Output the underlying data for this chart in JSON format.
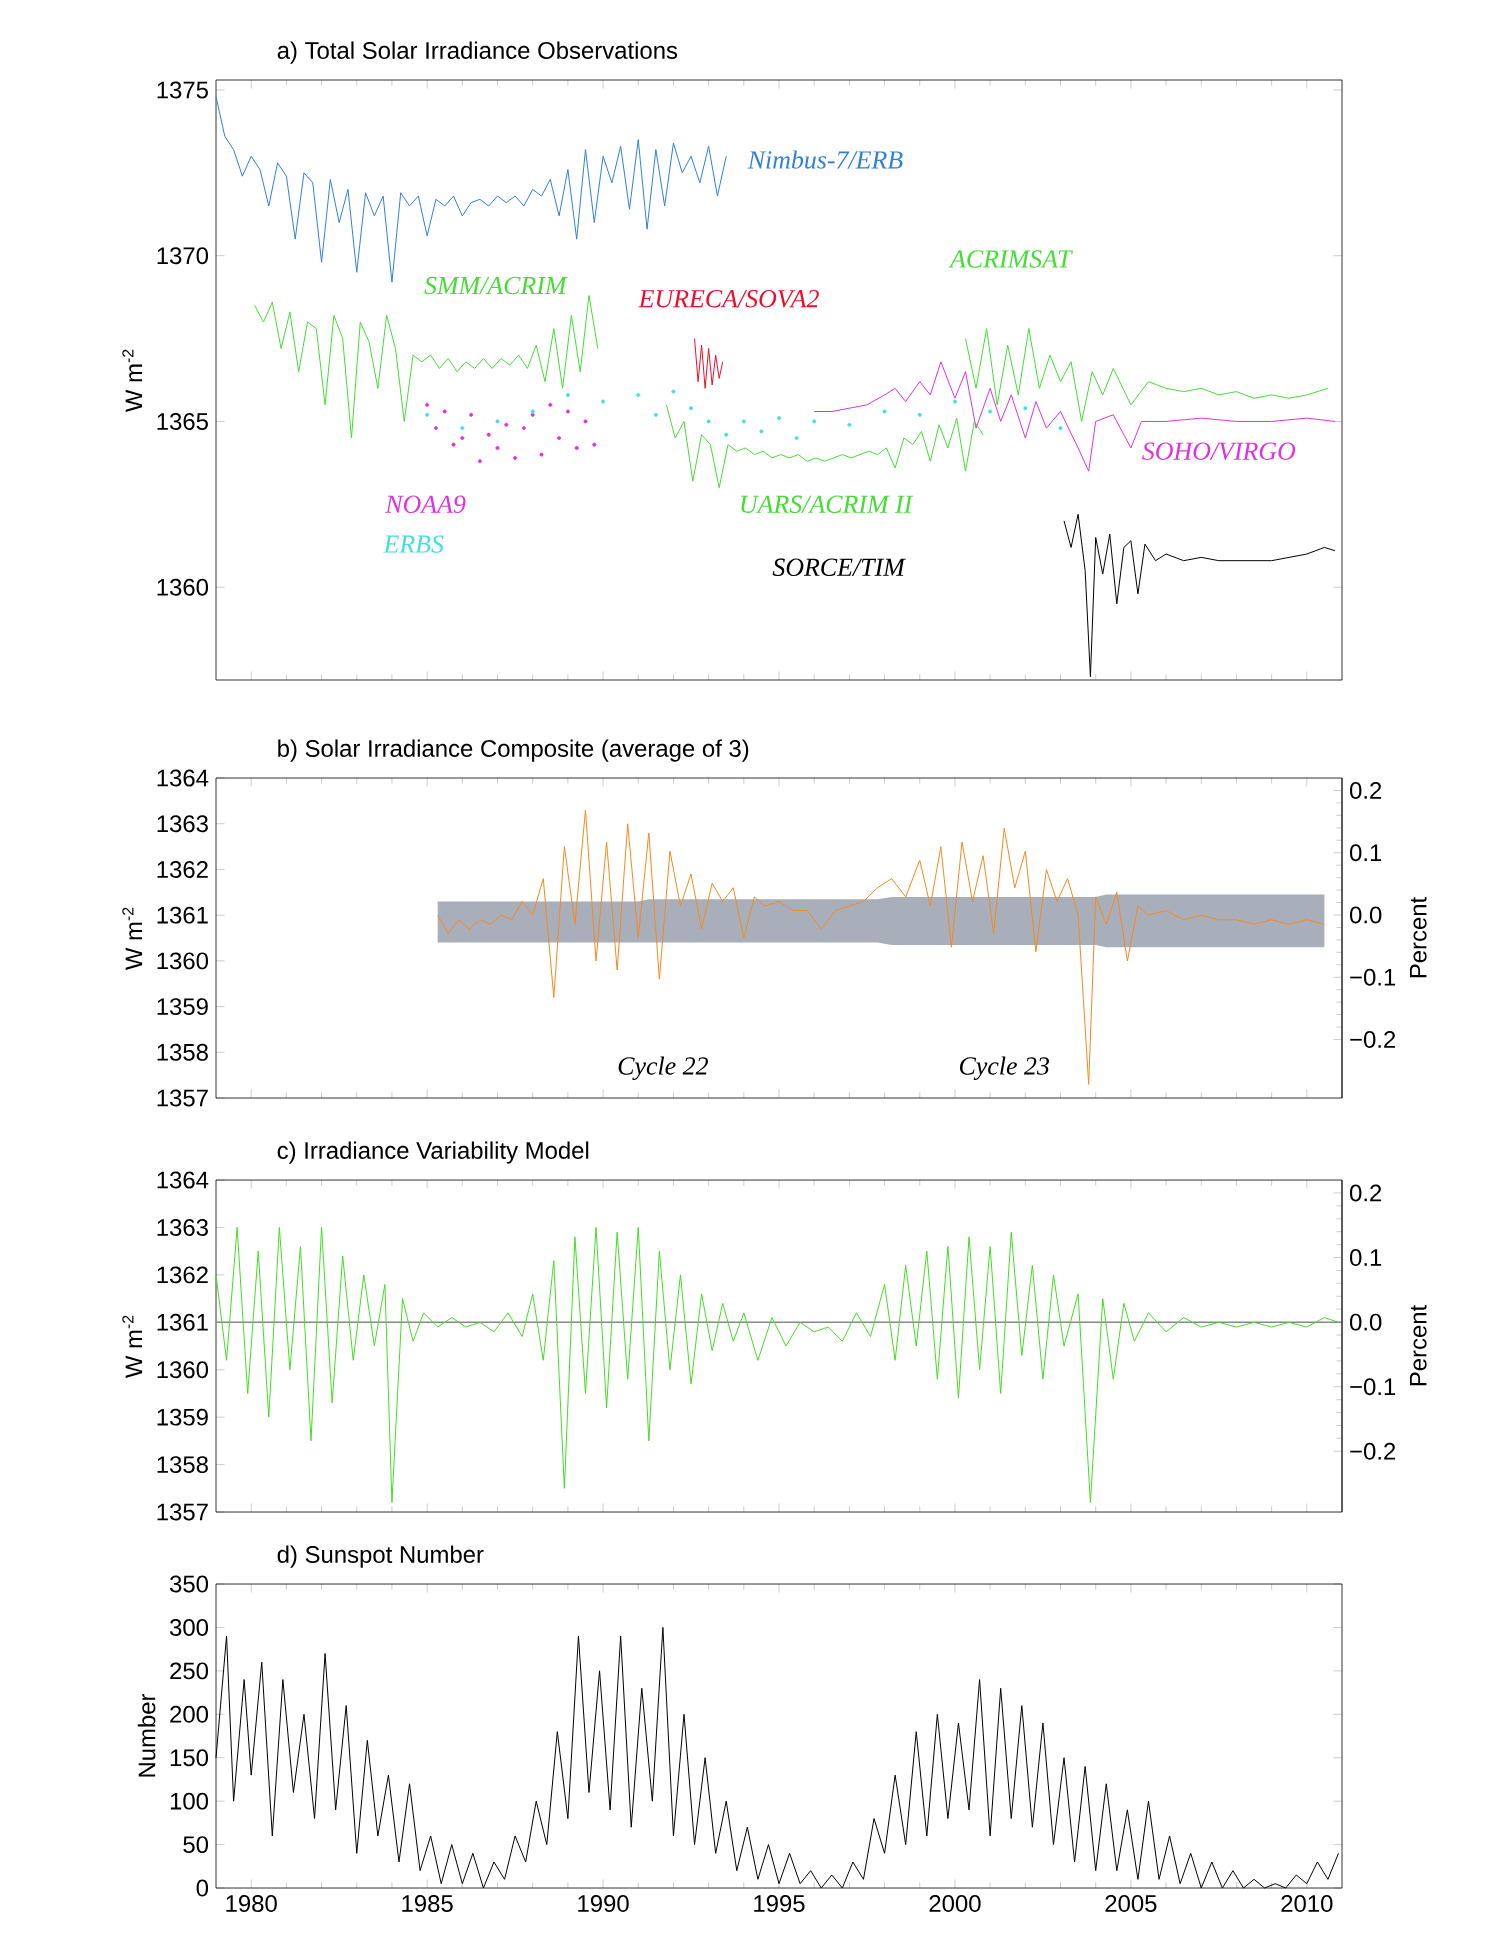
{
  "chart_data": [
    {
      "type": "line",
      "title": "a) Total Solar Irradiance Observations",
      "ylabel": "W m$^{-2}$",
      "xlim": [
        1979,
        2011
      ],
      "ylim": [
        1357.2,
        1375.3
      ],
      "xticks": [
        1980,
        1985,
        1990,
        1995,
        2000,
        2005,
        2010
      ],
      "yticks": [
        1360,
        1365,
        1370,
        1375
      ],
      "tick_labels": "y",
      "series": [
        {
          "name": "Nimbus-7/ERB",
          "color": "#2f7fe0",
          "x": [
            1979.0,
            1979.25,
            1979.5,
            1979.75,
            1980.0,
            1980.25,
            1980.5,
            1980.75,
            1981.0,
            1981.25,
            1981.5,
            1981.75,
            1982.0,
            1982.25,
            1982.5,
            1982.75,
            1983.0,
            1983.25,
            1983.5,
            1983.75,
            1984.0,
            1984.25,
            1984.5,
            1984.75,
            1985.0,
            1985.25,
            1985.5,
            1985.75,
            1986.0,
            1986.25,
            1986.5,
            1986.75,
            1987.0,
            1987.25,
            1987.5,
            1987.75,
            1988.0,
            1988.25,
            1988.5,
            1988.75,
            1989.0,
            1989.25,
            1989.5,
            1989.75,
            1990.0,
            1990.25,
            1990.5,
            1990.75,
            1991.0,
            1991.25,
            1991.5,
            1991.75,
            1992.0,
            1992.25,
            1992.5,
            1992.75,
            1993.0,
            1993.25,
            1993.5
          ],
          "values": [
            1374.8,
            1373.6,
            1373.2,
            1372.4,
            1373.0,
            1372.6,
            1371.5,
            1372.8,
            1372.4,
            1370.5,
            1372.5,
            1372.2,
            1369.8,
            1372.3,
            1371.0,
            1372.0,
            1369.5,
            1371.9,
            1371.2,
            1371.8,
            1369.2,
            1371.9,
            1371.5,
            1371.8,
            1370.6,
            1371.7,
            1371.5,
            1371.8,
            1371.2,
            1371.6,
            1371.7,
            1371.5,
            1371.8,
            1371.6,
            1371.8,
            1371.5,
            1372.0,
            1371.8,
            1372.3,
            1371.2,
            1372.6,
            1370.5,
            1373.2,
            1371.0,
            1373.0,
            1372.2,
            1373.3,
            1371.4,
            1373.5,
            1370.8,
            1373.2,
            1371.5,
            1373.4,
            1372.5,
            1373.0,
            1372.2,
            1373.3,
            1371.8,
            1373.0
          ]
        },
        {
          "name": "SMM/ACRIM",
          "color": "#44dd33",
          "x": [
            1980.1,
            1980.35,
            1980.6,
            1980.85,
            1981.1,
            1981.35,
            1981.6,
            1981.85,
            1982.1,
            1982.35,
            1982.6,
            1982.85,
            1983.1,
            1983.35,
            1983.6,
            1983.85,
            1984.1,
            1984.35,
            1984.6,
            1984.85,
            1985.1,
            1985.35,
            1985.6,
            1985.85,
            1986.1,
            1986.35,
            1986.6,
            1986.85,
            1987.1,
            1987.35,
            1987.6,
            1987.85,
            1988.1,
            1988.35,
            1988.6,
            1988.85,
            1989.1,
            1989.35,
            1989.6,
            1989.85
          ],
          "values": [
            1368.5,
            1368.0,
            1368.6,
            1367.2,
            1368.3,
            1366.5,
            1368.0,
            1367.8,
            1365.5,
            1368.2,
            1367.5,
            1364.5,
            1368.0,
            1367.4,
            1366.0,
            1368.2,
            1367.2,
            1365.0,
            1367.0,
            1366.8,
            1367.0,
            1366.6,
            1366.9,
            1366.5,
            1366.8,
            1366.6,
            1366.9,
            1366.6,
            1366.9,
            1366.7,
            1367.0,
            1366.6,
            1367.3,
            1366.2,
            1367.8,
            1366.0,
            1368.2,
            1366.5,
            1368.8,
            1367.2
          ]
        },
        {
          "name": "EURECA/SOVA2",
          "color": "#e8102a",
          "x": [
            1992.6,
            1992.7,
            1992.8,
            1992.9,
            1993.0,
            1993.1,
            1993.2,
            1993.3,
            1993.4
          ],
          "values": [
            1367.5,
            1366.2,
            1367.3,
            1366.0,
            1367.2,
            1366.1,
            1367.0,
            1366.3,
            1366.8
          ]
        },
        {
          "name": "ACRIMSAT",
          "color": "#44dd33",
          "x": [
            2000.3,
            2000.6,
            2000.9,
            2001.2,
            2001.5,
            2001.8,
            2002.1,
            2002.4,
            2002.7,
            2003.0,
            2003.3,
            2003.6,
            2003.9,
            2004.2,
            2004.5,
            2005.0,
            2005.5,
            2006.0,
            2006.5,
            2007.0,
            2007.5,
            2008.0,
            2008.5,
            2009.0,
            2009.5,
            2010.0,
            2010.6
          ],
          "values": [
            1367.5,
            1366.0,
            1367.8,
            1365.5,
            1367.3,
            1365.8,
            1367.8,
            1366.0,
            1367.0,
            1366.2,
            1366.8,
            1365.0,
            1366.5,
            1365.8,
            1366.6,
            1365.5,
            1366.2,
            1366.0,
            1365.9,
            1366.0,
            1365.8,
            1365.9,
            1365.7,
            1365.8,
            1365.7,
            1365.8,
            1366.0
          ]
        },
        {
          "name": "SOHO/VIRGO",
          "color": "#e030e0",
          "x": [
            1996.0,
            1996.5,
            1997.0,
            1997.5,
            1998.0,
            1998.3,
            1998.6,
            1999.0,
            1999.3,
            1999.6,
            2000.0,
            2000.3,
            2000.6,
            2001.0,
            2001.3,
            2001.6,
            2002.0,
            2002.3,
            2002.6,
            2003.0,
            2003.5,
            2003.8,
            2004.0,
            2004.5,
            2005.0,
            2005.3,
            2006.0,
            2007.0,
            2008.0,
            2009.0,
            2010.0,
            2010.8
          ],
          "values": [
            1365.3,
            1365.3,
            1365.4,
            1365.5,
            1365.8,
            1366.0,
            1365.6,
            1366.2,
            1365.8,
            1366.8,
            1365.7,
            1366.5,
            1364.8,
            1366.0,
            1365.0,
            1365.8,
            1364.5,
            1365.6,
            1364.8,
            1365.3,
            1364.2,
            1363.5,
            1365.0,
            1365.2,
            1364.2,
            1365.0,
            1365.0,
            1365.1,
            1365.0,
            1365.0,
            1365.1,
            1365.0
          ]
        },
        {
          "name": "NOAA9",
          "color": "#e030e0",
          "type": "scatter",
          "x": [
            1985.0,
            1985.25,
            1985.5,
            1985.75,
            1986.0,
            1986.25,
            1986.5,
            1986.75,
            1987.0,
            1987.25,
            1987.5,
            1987.75,
            1988.0,
            1988.25,
            1988.5,
            1988.75,
            1989.0,
            1989.25,
            1989.5,
            1989.75
          ],
          "values": [
            1365.5,
            1364.8,
            1365.3,
            1364.3,
            1364.5,
            1365.2,
            1363.8,
            1364.6,
            1364.2,
            1364.9,
            1363.9,
            1364.8,
            1365.2,
            1364.0,
            1365.5,
            1364.5,
            1365.3,
            1364.2,
            1365.0,
            1364.3
          ]
        },
        {
          "name": "ERBS",
          "color": "#40e0e0",
          "type": "scatter",
          "x": [
            1985,
            1986,
            1987,
            1988,
            1989,
            1990,
            1991,
            1991.5,
            1992,
            1992.5,
            1993,
            1993.5,
            1994,
            1994.5,
            1995,
            1995.5,
            1996,
            1997,
            1998,
            1999,
            2000,
            2001,
            2002,
            2003
          ],
          "values": [
            1365.2,
            1364.8,
            1365.0,
            1365.3,
            1365.8,
            1365.6,
            1365.8,
            1365.2,
            1365.9,
            1365.4,
            1365.0,
            1364.6,
            1365.0,
            1364.7,
            1365.1,
            1364.5,
            1365.0,
            1364.9,
            1365.3,
            1365.2,
            1365.6,
            1365.3,
            1365.4,
            1364.8
          ]
        },
        {
          "name": "UARS/ACRIM II",
          "color": "#44dd33",
          "x": [
            1991.8,
            1992.05,
            1992.3,
            1992.55,
            1992.8,
            1993.05,
            1993.3,
            1993.55,
            1993.8,
            1994.05,
            1994.3,
            1994.55,
            1994.8,
            1995.05,
            1995.3,
            1995.55,
            1995.8,
            1996.05,
            1996.3,
            1996.55,
            1996.8,
            1997.05,
            1997.3,
            1997.55,
            1997.8,
            1998.05,
            1998.3,
            1998.55,
            1998.8,
            1999.05,
            1999.3,
            1999.55,
            1999.8,
            2000.05,
            2000.3,
            2000.55,
            2000.8
          ],
          "values": [
            1365.5,
            1364.5,
            1365.0,
            1363.2,
            1364.6,
            1364.3,
            1363.0,
            1364.3,
            1364.1,
            1364.2,
            1364.0,
            1364.1,
            1363.9,
            1364.0,
            1363.9,
            1364.0,
            1363.8,
            1363.9,
            1363.8,
            1363.9,
            1364.0,
            1363.9,
            1364.0,
            1364.1,
            1364.0,
            1364.2,
            1363.6,
            1364.5,
            1364.3,
            1364.7,
            1363.8,
            1364.9,
            1364.2,
            1365.1,
            1363.5,
            1365.0,
            1364.6
          ]
        },
        {
          "name": "SORCE/TIM",
          "color": "#000000",
          "x": [
            2003.1,
            2003.3,
            2003.5,
            2003.7,
            2003.85,
            2004.0,
            2004.2,
            2004.4,
            2004.6,
            2004.8,
            2005.0,
            2005.2,
            2005.4,
            2005.7,
            2006.0,
            2006.5,
            2007.0,
            2007.5,
            2008.0,
            2008.5,
            2009.0,
            2009.5,
            2010.0,
            2010.5,
            2010.8
          ],
          "values": [
            1362.0,
            1361.2,
            1362.2,
            1360.5,
            1357.3,
            1361.5,
            1360.4,
            1361.6,
            1359.5,
            1361.2,
            1361.4,
            1359.8,
            1361.3,
            1360.8,
            1361.0,
            1360.8,
            1360.9,
            1360.8,
            1360.8,
            1360.8,
            1360.8,
            1360.9,
            1361.0,
            1361.2,
            1361.1
          ]
        }
      ]
    },
    {
      "type": "line",
      "title": "b) Solar Irradiance Composite (average of 3)",
      "ylabel": "W m$^{-2}$",
      "y2label": "Percent",
      "xlim": [
        1979,
        2011
      ],
      "ylim": [
        1357,
        1364
      ],
      "xticks": [
        1980,
        1985,
        1990,
        1995,
        2000,
        2005,
        2010
      ],
      "yticks": [
        1357,
        1358,
        1359,
        1360,
        1361,
        1362,
        1363,
        1364
      ],
      "y2lim": [
        -0.294,
        0.22
      ],
      "tick_labels": "y",
      "annotations": [
        "Cycle 22",
        "Cycle 23"
      ],
      "y2ticks": [
        {
          "value": -0.2,
          "label": "−0.2"
        },
        {
          "value": -0.1,
          "label": "−0.1"
        },
        {
          "value": 0,
          "label": "0.0"
        },
        {
          "value": 0.1,
          "label": "0.1"
        },
        {
          "value": 0.2,
          "label": "0.2"
        }
      ],
      "series": [
        {
          "color": "#f5891f",
          "lower": [
            1360.4,
            1360.4,
            1360.4,
            1360.4,
            1360.4,
            1360.4,
            1360.4,
            1360.4,
            1360.4,
            1360.4,
            1360.4,
            1360.4,
            1360.4,
            1360.4,
            1360.4,
            1360.4,
            1360.4,
            1360.4,
            1360.4,
            1360.4,
            1360.4,
            1360.4,
            1360.4,
            1360.4,
            1360.4,
            1360.4,
            1360.4,
            1360.4,
            1360.4,
            1360.4,
            1360.4,
            1360.4,
            1360.4,
            1360.4,
            1360.4,
            1360.4,
            1360.4,
            1360.4,
            1360.4,
            1360.4,
            1360.35,
            1360.35,
            1360.35,
            1360.35,
            1360.35,
            1360.35,
            1360.35,
            1360.35,
            1360.35,
            1360.35,
            1360.35,
            1360.35,
            1360.35,
            1360.35,
            1360.35,
            1360.35,
            1360.35,
            1360.35,
            1360.35,
            1360.35,
            1360.3,
            1360.3,
            1360.3,
            1360.3,
            1360.3,
            1360.3,
            1360.3,
            1360.3,
            1360.3,
            1360.3,
            1360.3,
            1360.3,
            1360.3,
            1360.3,
            1360.3
          ],
          "upper": [
            1361.3,
            1361.3,
            1361.3,
            1361.3,
            1361.3,
            1361.3,
            1361.3,
            1361.3,
            1361.3,
            1361.3,
            1361.3,
            1361.3,
            1361.3,
            1361.3,
            1361.3,
            1361.3,
            1361.3,
            1361.3,
            1361.3,
            1361.3,
            1361.35,
            1361.35,
            1361.35,
            1361.35,
            1361.35,
            1361.35,
            1361.35,
            1361.35,
            1361.35,
            1361.35,
            1361.35,
            1361.35,
            1361.35,
            1361.35,
            1361.35,
            1361.35,
            1361.35,
            1361.35,
            1361.35,
            1361.35,
            1361.4,
            1361.4,
            1361.4,
            1361.4,
            1361.4,
            1361.4,
            1361.4,
            1361.4,
            1361.4,
            1361.4,
            1361.4,
            1361.4,
            1361.4,
            1361.4,
            1361.4,
            1361.4,
            1361.4,
            1361.4,
            1361.4,
            1361.4,
            1361.45,
            1361.45,
            1361.45,
            1361.45,
            1361.45,
            1361.45,
            1361.45,
            1361.45,
            1361.45,
            1361.45,
            1361.45,
            1361.45,
            1361.45,
            1361.45,
            1361.45
          ],
          "x": [
            1985.3,
            1985.6,
            1985.9,
            1986.2,
            1986.5,
            1986.8,
            1987.1,
            1987.4,
            1987.7,
            1988.0,
            1988.3,
            1988.6,
            1988.9,
            1989.2,
            1989.5,
            1989.8,
            1990.1,
            1990.4,
            1990.7,
            1991.0,
            1991.3,
            1991.6,
            1991.9,
            1992.2,
            1992.5,
            1992.8,
            1993.1,
            1993.4,
            1993.7,
            1994.0,
            1994.3,
            1994.6,
            1995.0,
            1995.4,
            1995.8,
            1996.2,
            1996.6,
            1997.0,
            1997.4,
            1997.8,
            1998.2,
            1998.6,
            1999.0,
            1999.3,
            1999.6,
            1999.9,
            2000.2,
            2000.5,
            2000.8,
            2001.1,
            2001.4,
            2001.7,
            2002.0,
            2002.3,
            2002.6,
            2002.9,
            2003.2,
            2003.5,
            2003.8,
            2004.0,
            2004.3,
            2004.6,
            2004.9,
            2005.2,
            2005.5,
            2006.0,
            2006.5,
            2007.0,
            2007.5,
            2008.0,
            2008.5,
            2009.0,
            2009.5,
            2010.0,
            2010.5
          ],
          "values": [
            1361.0,
            1360.6,
            1360.9,
            1360.7,
            1360.9,
            1360.8,
            1361.0,
            1360.9,
            1361.3,
            1361.0,
            1361.8,
            1359.2,
            1362.5,
            1360.8,
            1363.3,
            1360.0,
            1362.6,
            1359.8,
            1363.0,
            1360.5,
            1362.8,
            1359.6,
            1362.4,
            1361.2,
            1361.9,
            1360.7,
            1361.7,
            1361.3,
            1361.6,
            1360.5,
            1361.4,
            1361.2,
            1361.3,
            1361.1,
            1361.1,
            1360.7,
            1361.1,
            1361.2,
            1361.3,
            1361.6,
            1361.8,
            1361.4,
            1362.2,
            1361.2,
            1362.5,
            1360.3,
            1362.6,
            1361.3,
            1362.3,
            1360.6,
            1362.9,
            1361.6,
            1362.4,
            1360.2,
            1362.0,
            1361.3,
            1361.8,
            1361.0,
            1357.3,
            1361.4,
            1360.8,
            1361.5,
            1360.0,
            1361.2,
            1361.0,
            1361.1,
            1360.9,
            1361.0,
            1360.9,
            1360.9,
            1360.8,
            1360.9,
            1360.8,
            1360.9,
            1360.8
          ]
        }
      ]
    },
    {
      "type": "line",
      "title": "c) Irradiance Variability Model",
      "ylabel": "W m$^{-2}$",
      "y2label": "Percent",
      "xlim": [
        1979,
        2011
      ],
      "ylim": [
        1357,
        1364
      ],
      "xticks": [
        1980,
        1985,
        1990,
        1995,
        2000,
        2005,
        2010
      ],
      "yticks": [
        1357,
        1358,
        1359,
        1360,
        1361,
        1362,
        1363,
        1364
      ],
      "y2lim": [
        -0.294,
        0.22
      ],
      "y2ticks": [
        {
          "value": -0.2,
          "label": "−0.2"
        },
        {
          "value": -0.1,
          "label": "−0.1"
        },
        {
          "value": 0,
          "label": "0.0"
        },
        {
          "value": 0.1,
          "label": "0.1"
        },
        {
          "value": 0.2,
          "label": "0.2"
        }
      ],
      "tick_labels": "y",
      "ref_lines": [
        {
          "axis": "y",
          "value": 1361,
          "color": "#888888"
        }
      ],
      "series": [
        {
          "color": "#44dd22",
          "x": [
            1979.0,
            1979.3,
            1979.6,
            1979.9,
            1980.2,
            1980.5,
            1980.8,
            1981.1,
            1981.4,
            1981.7,
            1982.0,
            1982.3,
            1982.6,
            1982.9,
            1983.2,
            1983.5,
            1983.8,
            1984.0,
            1984.3,
            1984.6,
            1984.9,
            1985.3,
            1985.7,
            1986.1,
            1986.5,
            1986.9,
            1987.3,
            1987.7,
            1988.0,
            1988.3,
            1988.6,
            1988.9,
            1989.2,
            1989.5,
            1989.8,
            1990.1,
            1990.4,
            1990.7,
            1991.0,
            1991.3,
            1991.6,
            1991.9,
            1992.2,
            1992.5,
            1992.8,
            1993.1,
            1993.4,
            1993.7,
            1994.0,
            1994.4,
            1994.8,
            1995.2,
            1995.6,
            1996.0,
            1996.4,
            1996.8,
            1997.2,
            1997.6,
            1998.0,
            1998.3,
            1998.6,
            1998.9,
            1999.2,
            1999.5,
            1999.8,
            2000.1,
            2000.4,
            2000.7,
            2001.0,
            2001.3,
            2001.6,
            2001.9,
            2002.2,
            2002.5,
            2002.8,
            2003.1,
            2003.5,
            2003.85,
            2004.2,
            2004.5,
            2004.8,
            2005.1,
            2005.5,
            2006.0,
            2006.5,
            2007.0,
            2007.5,
            2008.0,
            2008.5,
            2009.0,
            2009.5,
            2010.0,
            2010.5,
            2010.9
          ],
          "values": [
            1362.0,
            1360.2,
            1363.0,
            1359.5,
            1362.5,
            1359.0,
            1363.0,
            1360.0,
            1362.6,
            1358.5,
            1363.0,
            1359.3,
            1362.4,
            1360.2,
            1362.0,
            1360.5,
            1361.8,
            1357.2,
            1361.5,
            1360.6,
            1361.2,
            1360.9,
            1361.1,
            1360.9,
            1361.0,
            1360.8,
            1361.2,
            1360.7,
            1361.6,
            1360.2,
            1362.3,
            1357.5,
            1362.8,
            1359.5,
            1363.0,
            1359.2,
            1362.9,
            1359.8,
            1363.0,
            1358.5,
            1362.5,
            1360.0,
            1362.0,
            1359.7,
            1361.6,
            1360.4,
            1361.4,
            1360.6,
            1361.2,
            1360.2,
            1361.1,
            1360.5,
            1361.0,
            1360.8,
            1360.9,
            1360.6,
            1361.2,
            1360.7,
            1361.8,
            1360.2,
            1362.2,
            1360.5,
            1362.5,
            1359.8,
            1362.6,
            1359.4,
            1362.8,
            1360.0,
            1362.6,
            1359.5,
            1362.9,
            1360.3,
            1362.2,
            1359.8,
            1362.0,
            1360.5,
            1361.6,
            1357.2,
            1361.5,
            1359.8,
            1361.4,
            1360.6,
            1361.2,
            1360.8,
            1361.1,
            1360.9,
            1361.0,
            1360.9,
            1361.0,
            1360.9,
            1361.0,
            1360.9,
            1361.1,
            1361.0
          ]
        }
      ]
    },
    {
      "type": "line",
      "title": "d) Sunspot Number",
      "ylabel": "Number",
      "xlim": [
        1979,
        2011
      ],
      "ylim": [
        0,
        350
      ],
      "xticks": [
        1980,
        1985,
        1990,
        1995,
        2000,
        2005,
        2010
      ],
      "yticks": [
        0,
        50,
        100,
        150,
        200,
        250,
        300,
        350
      ],
      "series": [
        {
          "color": "#000000",
          "x": [
            1979.0,
            1979.3,
            1979.5,
            1979.8,
            1980.0,
            1980.3,
            1980.6,
            1980.9,
            1981.2,
            1981.5,
            1981.8,
            1982.1,
            1982.4,
            1982.7,
            1983.0,
            1983.3,
            1983.6,
            1983.9,
            1984.2,
            1984.5,
            1984.8,
            1985.1,
            1985.4,
            1985.7,
            1986.0,
            1986.3,
            1986.6,
            1986.9,
            1987.2,
            1987.5,
            1987.8,
            1988.1,
            1988.4,
            1988.7,
            1989.0,
            1989.3,
            1989.6,
            1989.9,
            1990.2,
            1990.5,
            1990.8,
            1991.1,
            1991.4,
            1991.7,
            1992.0,
            1992.3,
            1992.6,
            1992.9,
            1993.2,
            1993.5,
            1993.8,
            1994.1,
            1994.4,
            1994.7,
            1995.0,
            1995.3,
            1995.6,
            1995.9,
            1996.2,
            1996.5,
            1996.8,
            1997.1,
            1997.4,
            1997.7,
            1998.0,
            1998.3,
            1998.6,
            1998.9,
            1999.2,
            1999.5,
            1999.8,
            2000.1,
            2000.4,
            2000.7,
            2001.0,
            2001.3,
            2001.6,
            2001.9,
            2002.2,
            2002.5,
            2002.8,
            2003.1,
            2003.4,
            2003.7,
            2004.0,
            2004.3,
            2004.6,
            2004.9,
            2005.2,
            2005.5,
            2005.8,
            2006.1,
            2006.4,
            2006.7,
            2007.0,
            2007.3,
            2007.6,
            2007.9,
            2008.2,
            2008.5,
            2008.8,
            2009.1,
            2009.4,
            2009.7,
            2010.0,
            2010.3,
            2010.6,
            2010.9
          ],
          "values": [
            150,
            290,
            100,
            240,
            130,
            260,
            60,
            240,
            110,
            200,
            80,
            270,
            90,
            210,
            40,
            170,
            60,
            130,
            30,
            120,
            20,
            60,
            5,
            50,
            5,
            40,
            0,
            30,
            10,
            60,
            30,
            100,
            50,
            180,
            80,
            290,
            110,
            250,
            90,
            290,
            70,
            230,
            100,
            300,
            60,
            200,
            50,
            150,
            40,
            100,
            20,
            70,
            10,
            50,
            5,
            40,
            5,
            20,
            0,
            15,
            0,
            30,
            10,
            80,
            40,
            130,
            50,
            180,
            60,
            200,
            80,
            190,
            90,
            240,
            60,
            230,
            80,
            210,
            70,
            190,
            50,
            150,
            30,
            140,
            20,
            120,
            20,
            90,
            10,
            100,
            10,
            60,
            5,
            40,
            0,
            30,
            0,
            20,
            0,
            10,
            0,
            5,
            0,
            15,
            5,
            30,
            10,
            40
          ]
        }
      ]
    }
  ]
}
